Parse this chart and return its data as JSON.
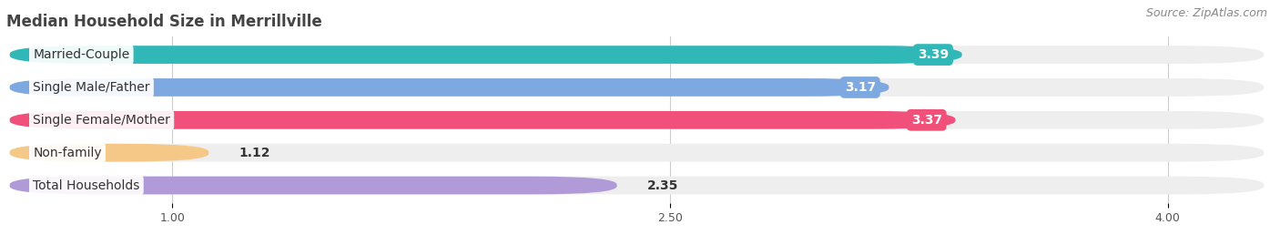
{
  "title": "Median Household Size in Merrillville",
  "source": "Source: ZipAtlas.com",
  "categories": [
    "Married-Couple",
    "Single Male/Father",
    "Single Female/Mother",
    "Non-family",
    "Total Households"
  ],
  "values": [
    3.39,
    3.17,
    3.37,
    1.12,
    2.35
  ],
  "bar_colors": [
    "#30b8b8",
    "#7da8e0",
    "#f0507a",
    "#f5c888",
    "#b09ad8"
  ],
  "value_label_colors": [
    "#30b8b8",
    "#7da8e0",
    "#f0507a",
    "#f5c888",
    "#b09ad8"
  ],
  "value_text_colors": [
    "white",
    "white",
    "white",
    "white",
    "white"
  ],
  "xlim_min": 0.5,
  "xlim_max": 4.3,
  "xticks": [
    1.0,
    2.5,
    4.0
  ],
  "background_color": "#ffffff",
  "bar_bg_color": "#eeeeee",
  "title_fontsize": 12,
  "source_fontsize": 9,
  "value_fontsize": 10,
  "category_fontsize": 10
}
